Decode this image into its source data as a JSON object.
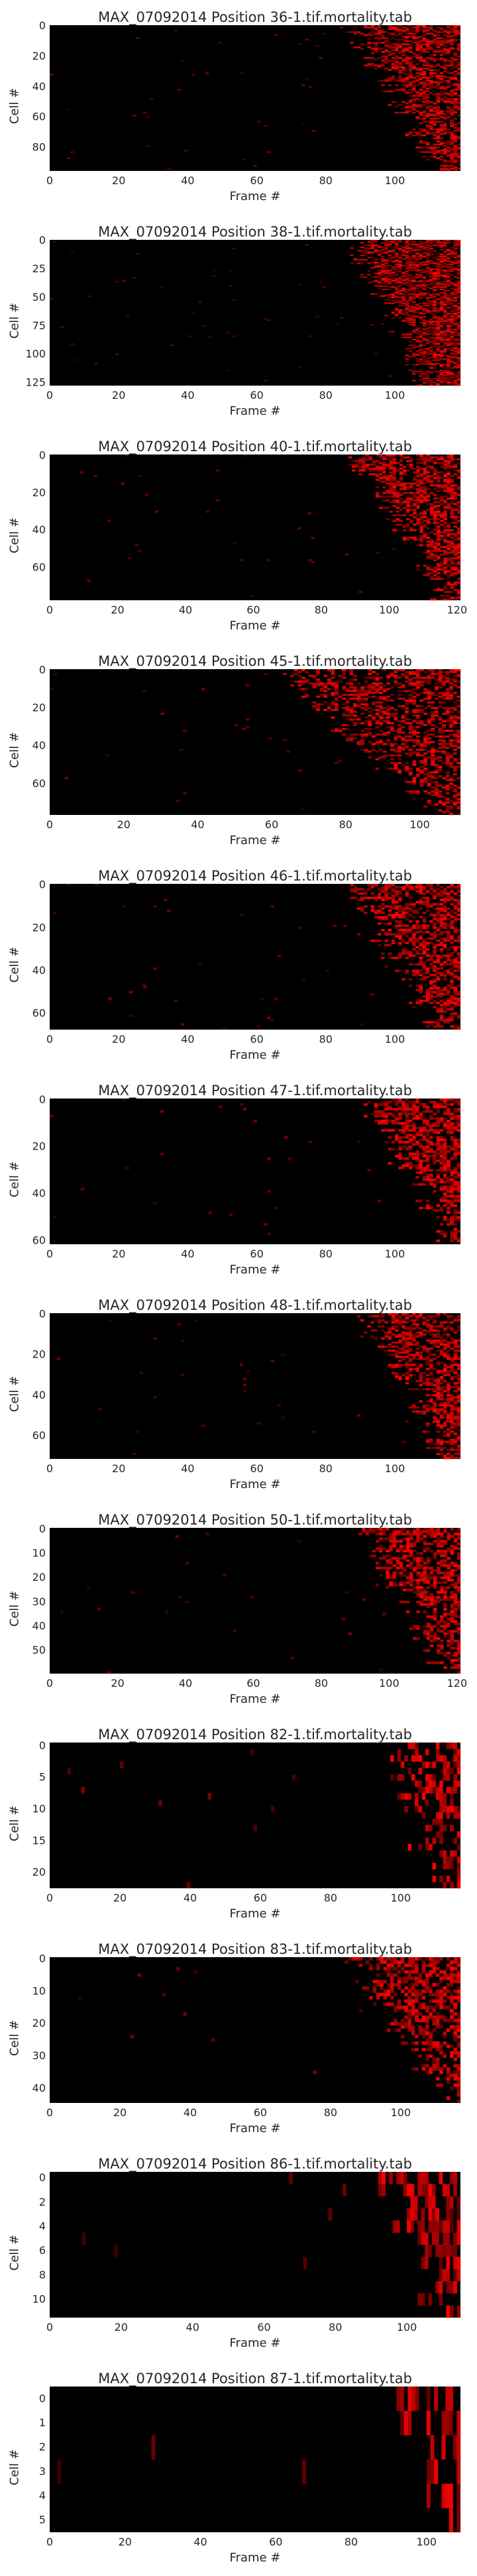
{
  "figure": {
    "background": "#ffffff",
    "colormap": [
      "#000000",
      "#ff0000"
    ]
  },
  "chart_data": [
    {
      "type": "heatmap",
      "title": "MAX_07092014 Position 36-1.tif.mortality.tab",
      "xlabel": "Frame #",
      "ylabel": "Cell #",
      "n_cells": 96,
      "n_frames": 119,
      "xlim": [
        0,
        119
      ],
      "ylim": [
        95.5,
        -0.5
      ],
      "xticks": [
        0,
        20,
        40,
        60,
        80,
        100
      ],
      "yticks": [
        0,
        20,
        40,
        60,
        80
      ],
      "grid": false,
      "pattern": {
        "onset_start_frame": 88,
        "onset_end_frame": 113,
        "density": 0.55
      }
    },
    {
      "type": "heatmap",
      "title": "MAX_07092014 Position 38-1.tif.mortality.tab",
      "xlabel": "Frame #",
      "ylabel": "Cell #",
      "n_cells": 128,
      "n_frames": 119,
      "xlim": [
        0,
        119
      ],
      "ylim": [
        127.5,
        -0.5
      ],
      "xticks": [
        0,
        20,
        40,
        60,
        80,
        100
      ],
      "yticks": [
        0,
        25,
        50,
        75,
        100,
        125
      ],
      "grid": false,
      "pattern": {
        "onset_start_frame": 88,
        "onset_end_frame": 110,
        "density": 0.55
      }
    },
    {
      "type": "heatmap",
      "title": "MAX_07092014 Position 40-1.tif.mortality.tab",
      "xlabel": "Frame #",
      "ylabel": "Cell #",
      "n_cells": 78,
      "n_frames": 121,
      "xlim": [
        0,
        121
      ],
      "ylim": [
        77.5,
        -0.5
      ],
      "xticks": [
        0,
        20,
        40,
        60,
        80,
        100,
        120
      ],
      "yticks": [
        0,
        20,
        40,
        60
      ],
      "grid": false,
      "pattern": {
        "onset_start_frame": 90,
        "onset_end_frame": 116,
        "density": 0.55
      }
    },
    {
      "type": "heatmap",
      "title": "MAX_07092014 Position 45-1.tif.mortality.tab",
      "xlabel": "Frame #",
      "ylabel": "Cell #",
      "n_cells": 77,
      "n_frames": 111,
      "xlim": [
        0,
        111
      ],
      "ylim": [
        76.5,
        -0.5
      ],
      "xticks": [
        0,
        20,
        40,
        60,
        80,
        100
      ],
      "yticks": [
        0,
        20,
        40,
        60
      ],
      "grid": false,
      "pattern": {
        "onset_start_frame": 64,
        "onset_end_frame": 103,
        "density": 0.45
      }
    },
    {
      "type": "heatmap",
      "title": "MAX_07092014 Position 46-1.tif.mortality.tab",
      "xlabel": "Frame #",
      "ylabel": "Cell #",
      "n_cells": 68,
      "n_frames": 119,
      "xlim": [
        0,
        119
      ],
      "ylim": [
        67.5,
        -0.5
      ],
      "xticks": [
        0,
        20,
        40,
        60,
        80,
        100
      ],
      "yticks": [
        0,
        20,
        40,
        60
      ],
      "grid": false,
      "pattern": {
        "onset_start_frame": 88,
        "onset_end_frame": 112,
        "density": 0.55
      }
    },
    {
      "type": "heatmap",
      "title": "MAX_07092014 Position 47-1.tif.mortality.tab",
      "xlabel": "Frame #",
      "ylabel": "Cell #",
      "n_cells": 62,
      "n_frames": 119,
      "xlim": [
        0,
        119
      ],
      "ylim": [
        61.5,
        -0.5
      ],
      "xticks": [
        0,
        20,
        40,
        60,
        80,
        100
      ],
      "yticks": [
        0,
        20,
        40,
        60
      ],
      "grid": false,
      "pattern": {
        "onset_start_frame": 92,
        "onset_end_frame": 116,
        "density": 0.6
      }
    },
    {
      "type": "heatmap",
      "title": "MAX_07092014 Position 48-1.tif.mortality.tab",
      "xlabel": "Frame #",
      "ylabel": "Cell #",
      "n_cells": 72,
      "n_frames": 119,
      "xlim": [
        0,
        119
      ],
      "ylim": [
        71.5,
        -0.5
      ],
      "xticks": [
        0,
        20,
        40,
        60,
        80,
        100
      ],
      "yticks": [
        0,
        20,
        40,
        60
      ],
      "grid": false,
      "pattern": {
        "onset_start_frame": 92,
        "onset_end_frame": 115,
        "density": 0.55
      }
    },
    {
      "type": "heatmap",
      "title": "MAX_07092014 Position 50-1.tif.mortality.tab",
      "xlabel": "Frame #",
      "ylabel": "Cell #",
      "n_cells": 60,
      "n_frames": 121,
      "xlim": [
        0,
        121
      ],
      "ylim": [
        59.5,
        -0.5
      ],
      "xticks": [
        0,
        20,
        40,
        60,
        80,
        100,
        120
      ],
      "yticks": [
        0,
        10,
        20,
        30,
        40,
        50
      ],
      "grid": false,
      "pattern": {
        "onset_start_frame": 93,
        "onset_end_frame": 117,
        "density": 0.55
      }
    },
    {
      "type": "heatmap",
      "title": "MAX_07092014 Position 82-1.tif.mortality.tab",
      "xlabel": "Frame #",
      "ylabel": "Cell #",
      "n_cells": 23,
      "n_frames": 117,
      "xlim": [
        0,
        117
      ],
      "ylim": [
        22.5,
        -0.5
      ],
      "xticks": [
        0,
        20,
        40,
        60,
        80,
        100
      ],
      "yticks": [
        0,
        5,
        10,
        15,
        20
      ],
      "grid": false,
      "pattern": {
        "onset_start_frame": 96,
        "onset_end_frame": 110,
        "density": 0.45
      }
    },
    {
      "type": "heatmap",
      "title": "MAX_07092014 Position 83-1.tif.mortality.tab",
      "xlabel": "Frame #",
      "ylabel": "Cell #",
      "n_cells": 45,
      "n_frames": 117,
      "xlim": [
        0,
        117
      ],
      "ylim": [
        44.5,
        -0.5
      ],
      "xticks": [
        0,
        20,
        40,
        60,
        80,
        100
      ],
      "yticks": [
        0,
        10,
        20,
        30,
        40
      ],
      "grid": false,
      "pattern": {
        "onset_start_frame": 88,
        "onset_end_frame": 112,
        "density": 0.55
      }
    },
    {
      "type": "heatmap",
      "title": "MAX_07092014 Position 86-1.tif.mortality.tab",
      "xlabel": "Frame #",
      "ylabel": "Cell #",
      "n_cells": 12,
      "n_frames": 115,
      "xlim": [
        0,
        115
      ],
      "ylim": [
        11.5,
        -0.5
      ],
      "xticks": [
        0,
        20,
        40,
        60,
        80,
        100
      ],
      "yticks": [
        0,
        2,
        4,
        6,
        8,
        10
      ],
      "grid": false,
      "pattern": {
        "onset_start_frame": 93,
        "onset_end_frame": 108,
        "density": 0.5
      }
    },
    {
      "type": "heatmap",
      "title": "MAX_07092014 Position 87-1.tif.mortality.tab",
      "xlabel": "Frame #",
      "ylabel": "Cell #",
      "n_cells": 6,
      "n_frames": 109,
      "xlim": [
        0,
        109
      ],
      "ylim": [
        5.5,
        -0.5
      ],
      "xticks": [
        0,
        20,
        40,
        60,
        80,
        100
      ],
      "yticks": [
        0,
        1,
        2,
        3,
        4,
        5
      ],
      "grid": false,
      "pattern": {
        "onset_start_frame": 93,
        "onset_end_frame": 104,
        "density": 0.5
      }
    }
  ]
}
